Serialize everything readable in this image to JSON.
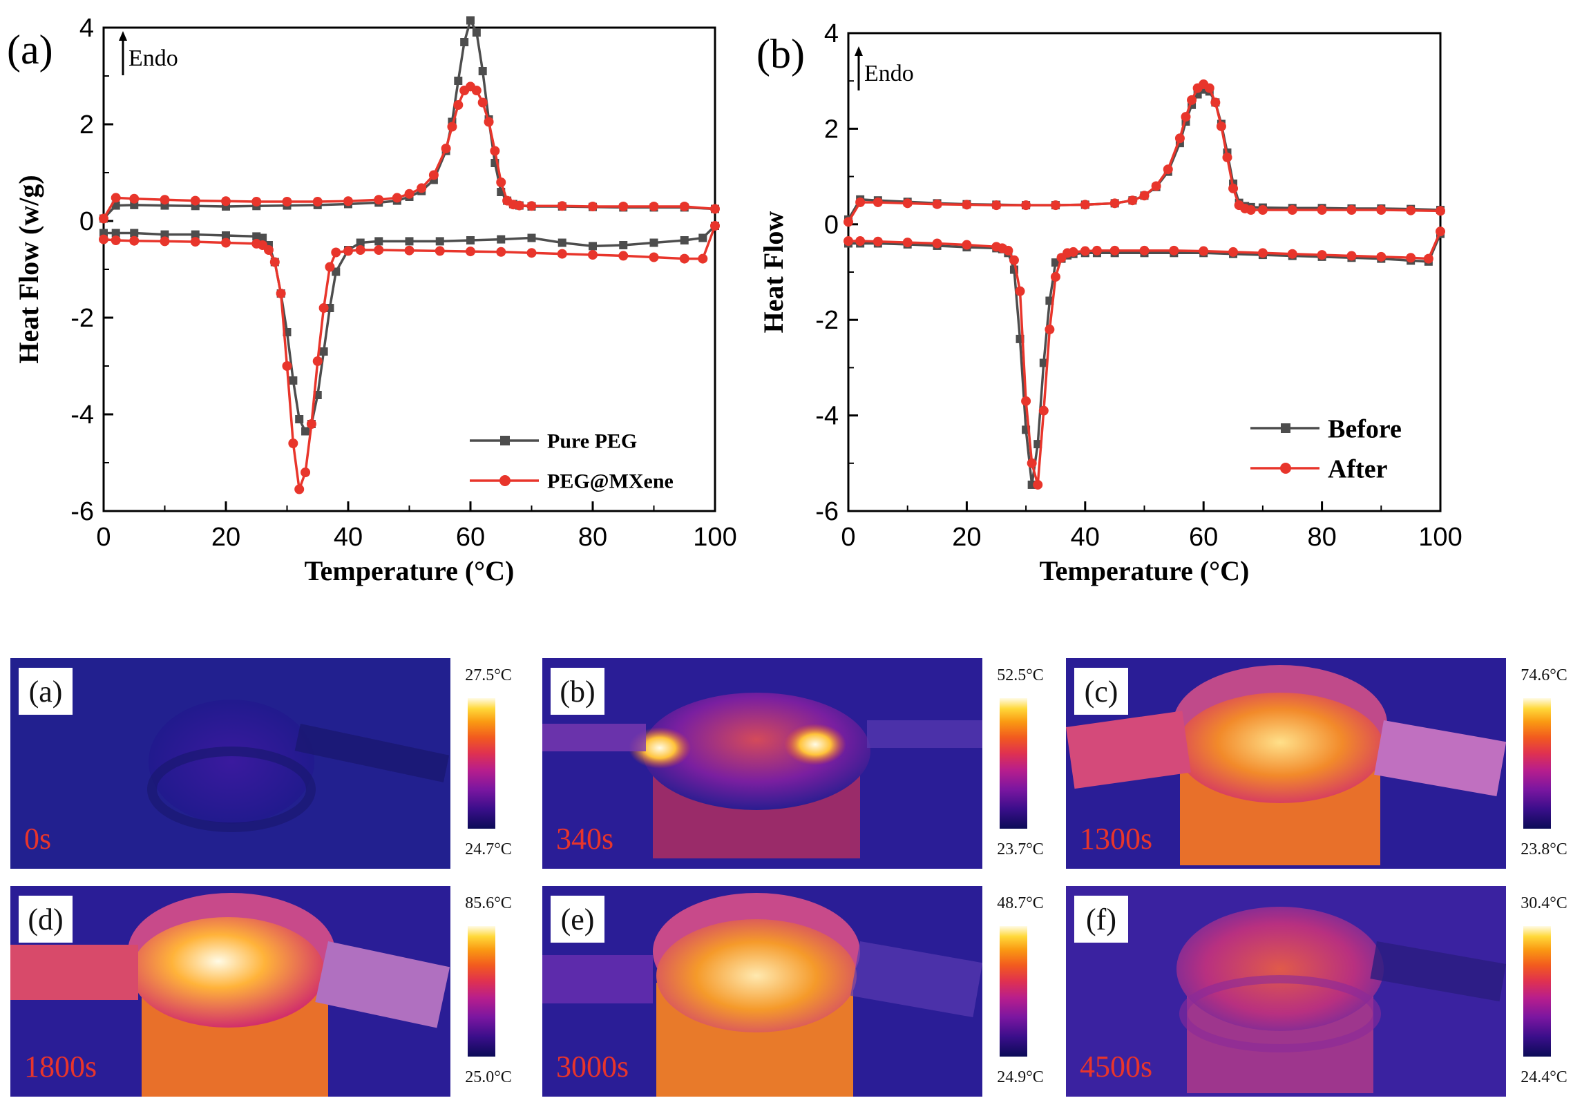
{
  "chart_data": [
    {
      "type": "line",
      "panel_label": "(a)",
      "annotation": "Endo",
      "xlabel": "Temperature (°C)",
      "ylabel": "Heat Flow (w/g)",
      "xlim": [
        0,
        100
      ],
      "ylim": [
        -6,
        4
      ],
      "xticks": [
        "0",
        "20",
        "40",
        "60",
        "80",
        "100"
      ],
      "yticks": [
        "-6",
        "-4",
        "-2",
        "0",
        "2",
        "4"
      ],
      "legend_position": "bottom-right",
      "series": [
        {
          "name": "Pure PEG",
          "color": "#4d4d4d",
          "marker": "square",
          "heating": {
            "x": [
              0,
              2,
              5,
              10,
              15,
              20,
              25,
              30,
              35,
              40,
              45,
              48,
              50,
              52,
              54,
              56,
              57,
              58,
              59,
              60,
              61,
              62,
              63,
              64,
              65,
              66,
              67,
              68,
              70,
              75,
              80,
              85,
              90,
              95,
              100
            ],
            "y": [
              0.05,
              0.32,
              0.33,
              0.32,
              0.31,
              0.3,
              0.31,
              0.32,
              0.33,
              0.35,
              0.38,
              0.42,
              0.5,
              0.62,
              0.85,
              1.45,
              2.05,
              2.9,
              3.7,
              4.15,
              3.9,
              3.1,
              2.1,
              1.2,
              0.6,
              0.42,
              0.35,
              0.32,
              0.3,
              0.3,
              0.29,
              0.28,
              0.28,
              0.28,
              0.25
            ]
          },
          "cooling": {
            "x": [
              100,
              98,
              95,
              90,
              85,
              80,
              75,
              70,
              65,
              60,
              55,
              50,
              45,
              42,
              40,
              38,
              37,
              36,
              35,
              34,
              33,
              32,
              31,
              30,
              29,
              28,
              27,
              26,
              25,
              20,
              15,
              10,
              5,
              2,
              0
            ],
            "y": [
              -0.1,
              -0.35,
              -0.4,
              -0.45,
              -0.5,
              -0.52,
              -0.45,
              -0.35,
              -0.38,
              -0.4,
              -0.42,
              -0.42,
              -0.42,
              -0.45,
              -0.6,
              -1.05,
              -1.8,
              -2.7,
              -3.6,
              -4.2,
              -4.35,
              -4.1,
              -3.3,
              -2.3,
              -1.5,
              -0.85,
              -0.5,
              -0.35,
              -0.32,
              -0.3,
              -0.28,
              -0.28,
              -0.25,
              -0.25,
              -0.25
            ]
          }
        },
        {
          "name": "PEG@MXene",
          "color": "#e8352b",
          "marker": "circle",
          "heating": {
            "x": [
              0,
              2,
              5,
              10,
              15,
              20,
              25,
              30,
              35,
              40,
              45,
              48,
              50,
              52,
              54,
              56,
              57,
              58,
              59,
              60,
              61,
              62,
              63,
              64,
              65,
              66,
              67,
              68,
              70,
              75,
              80,
              85,
              90,
              95,
              100
            ],
            "y": [
              0.05,
              0.48,
              0.46,
              0.44,
              0.42,
              0.41,
              0.4,
              0.4,
              0.4,
              0.41,
              0.44,
              0.48,
              0.56,
              0.68,
              0.95,
              1.5,
              1.95,
              2.4,
              2.7,
              2.78,
              2.7,
              2.45,
              2.05,
              1.45,
              0.8,
              0.42,
              0.34,
              0.32,
              0.31,
              0.31,
              0.3,
              0.3,
              0.3,
              0.3,
              0.25
            ]
          },
          "cooling": {
            "x": [
              100,
              98,
              95,
              90,
              85,
              80,
              75,
              70,
              65,
              60,
              55,
              50,
              45,
              42,
              40,
              38,
              37,
              36,
              35,
              34,
              33,
              32,
              31,
              30,
              29,
              28,
              27,
              26,
              25,
              20,
              15,
              10,
              5,
              2,
              0
            ],
            "y": [
              -0.1,
              -0.78,
              -0.78,
              -0.75,
              -0.72,
              -0.7,
              -0.68,
              -0.66,
              -0.64,
              -0.63,
              -0.62,
              -0.61,
              -0.6,
              -0.6,
              -0.62,
              -0.65,
              -0.95,
              -1.8,
              -2.9,
              -4.2,
              -5.2,
              -5.55,
              -4.6,
              -3.0,
              -1.5,
              -0.85,
              -0.6,
              -0.5,
              -0.47,
              -0.45,
              -0.43,
              -0.42,
              -0.41,
              -0.4,
              -0.38
            ]
          }
        }
      ]
    },
    {
      "type": "line",
      "panel_label": "(b)",
      "annotation": "Endo",
      "xlabel": "Temperature (°C)",
      "ylabel": "Heat Flow",
      "xlim": [
        0,
        100
      ],
      "ylim": [
        -6,
        4
      ],
      "xticks": [
        "0",
        "20",
        "40",
        "60",
        "80",
        "100"
      ],
      "yticks": [
        "-6",
        "-4",
        "-2",
        "0",
        "2",
        "4"
      ],
      "legend_position": "bottom-right",
      "series": [
        {
          "name": "Before",
          "color": "#4d4d4d",
          "marker": "square",
          "heating": {
            "x": [
              0,
              2,
              5,
              10,
              15,
              20,
              25,
              30,
              35,
              40,
              45,
              48,
              50,
              52,
              54,
              56,
              57,
              58,
              59,
              60,
              61,
              62,
              63,
              64,
              65,
              66,
              67,
              68,
              70,
              75,
              80,
              85,
              90,
              95,
              100
            ],
            "y": [
              0.1,
              0.52,
              0.5,
              0.47,
              0.44,
              0.42,
              0.41,
              0.4,
              0.4,
              0.41,
              0.44,
              0.5,
              0.6,
              0.78,
              1.1,
              1.7,
              2.15,
              2.5,
              2.72,
              2.82,
              2.78,
              2.55,
              2.1,
              1.5,
              0.85,
              0.45,
              0.38,
              0.36,
              0.35,
              0.34,
              0.34,
              0.33,
              0.33,
              0.32,
              0.3
            ]
          },
          "cooling": {
            "x": [
              100,
              98,
              95,
              90,
              85,
              80,
              75,
              70,
              65,
              60,
              55,
              50,
              45,
              42,
              40,
              38,
              37,
              36,
              35,
              34,
              33,
              32,
              31,
              30,
              29,
              28,
              27,
              26,
              25,
              20,
              15,
              10,
              5,
              2,
              0
            ],
            "y": [
              -0.2,
              -0.78,
              -0.76,
              -0.72,
              -0.7,
              -0.68,
              -0.66,
              -0.64,
              -0.62,
              -0.6,
              -0.6,
              -0.6,
              -0.6,
              -0.6,
              -0.6,
              -0.62,
              -0.65,
              -0.72,
              -0.8,
              -1.6,
              -2.9,
              -4.6,
              -5.45,
              -4.3,
              -2.4,
              -0.95,
              -0.6,
              -0.52,
              -0.5,
              -0.48,
              -0.45,
              -0.42,
              -0.4,
              -0.4,
              -0.4
            ]
          }
        },
        {
          "name": "After",
          "color": "#e8352b",
          "marker": "circle",
          "heating": {
            "x": [
              0,
              2,
              5,
              10,
              15,
              20,
              25,
              30,
              35,
              40,
              45,
              48,
              50,
              52,
              54,
              56,
              57,
              58,
              59,
              60,
              61,
              62,
              63,
              64,
              65,
              66,
              67,
              68,
              70,
              75,
              80,
              85,
              90,
              95,
              100
            ],
            "y": [
              0.05,
              0.46,
              0.46,
              0.44,
              0.42,
              0.41,
              0.4,
              0.4,
              0.4,
              0.41,
              0.44,
              0.5,
              0.6,
              0.8,
              1.15,
              1.8,
              2.25,
              2.6,
              2.85,
              2.93,
              2.85,
              2.55,
              2.05,
              1.4,
              0.75,
              0.4,
              0.33,
              0.3,
              0.3,
              0.3,
              0.3,
              0.3,
              0.3,
              0.29,
              0.28
            ]
          },
          "cooling": {
            "x": [
              100,
              98,
              95,
              90,
              85,
              80,
              75,
              70,
              65,
              60,
              55,
              50,
              45,
              42,
              40,
              38,
              37,
              36,
              35,
              34,
              33,
              32,
              31,
              30,
              29,
              28,
              27,
              26,
              25,
              20,
              15,
              10,
              5,
              2,
              0
            ],
            "y": [
              -0.15,
              -0.72,
              -0.7,
              -0.68,
              -0.66,
              -0.64,
              -0.62,
              -0.6,
              -0.58,
              -0.56,
              -0.55,
              -0.55,
              -0.55,
              -0.55,
              -0.56,
              -0.58,
              -0.6,
              -0.7,
              -1.1,
              -2.2,
              -3.9,
              -5.45,
              -5.0,
              -3.7,
              -1.4,
              -0.75,
              -0.55,
              -0.5,
              -0.47,
              -0.43,
              -0.4,
              -0.38,
              -0.36,
              -0.35,
              -0.35
            ]
          }
        }
      ]
    }
  ],
  "thermal_images": [
    {
      "label": "(a)",
      "time": "0s",
      "max": "27.5°C",
      "min": "24.7°C"
    },
    {
      "label": "(b)",
      "time": "340s",
      "max": "52.5°C",
      "min": "23.7°C"
    },
    {
      "label": "(c)",
      "time": "1300s",
      "max": "74.6°C",
      "min": "23.8°C"
    },
    {
      "label": "(d)",
      "time": "1800s",
      "max": "85.6°C",
      "min": "25.0°C"
    },
    {
      "label": "(e)",
      "time": "3000s",
      "max": "48.7°C",
      "min": "24.9°C"
    },
    {
      "label": "(f)",
      "time": "4500s",
      "max": "30.4°C",
      "min": "24.4°C"
    }
  ],
  "colors": {
    "background": "#ffffff",
    "axis": "#000000",
    "pure_peg": "#4d4d4d",
    "peg_mxene": "#e8352b",
    "time_label": "#e8352b"
  }
}
